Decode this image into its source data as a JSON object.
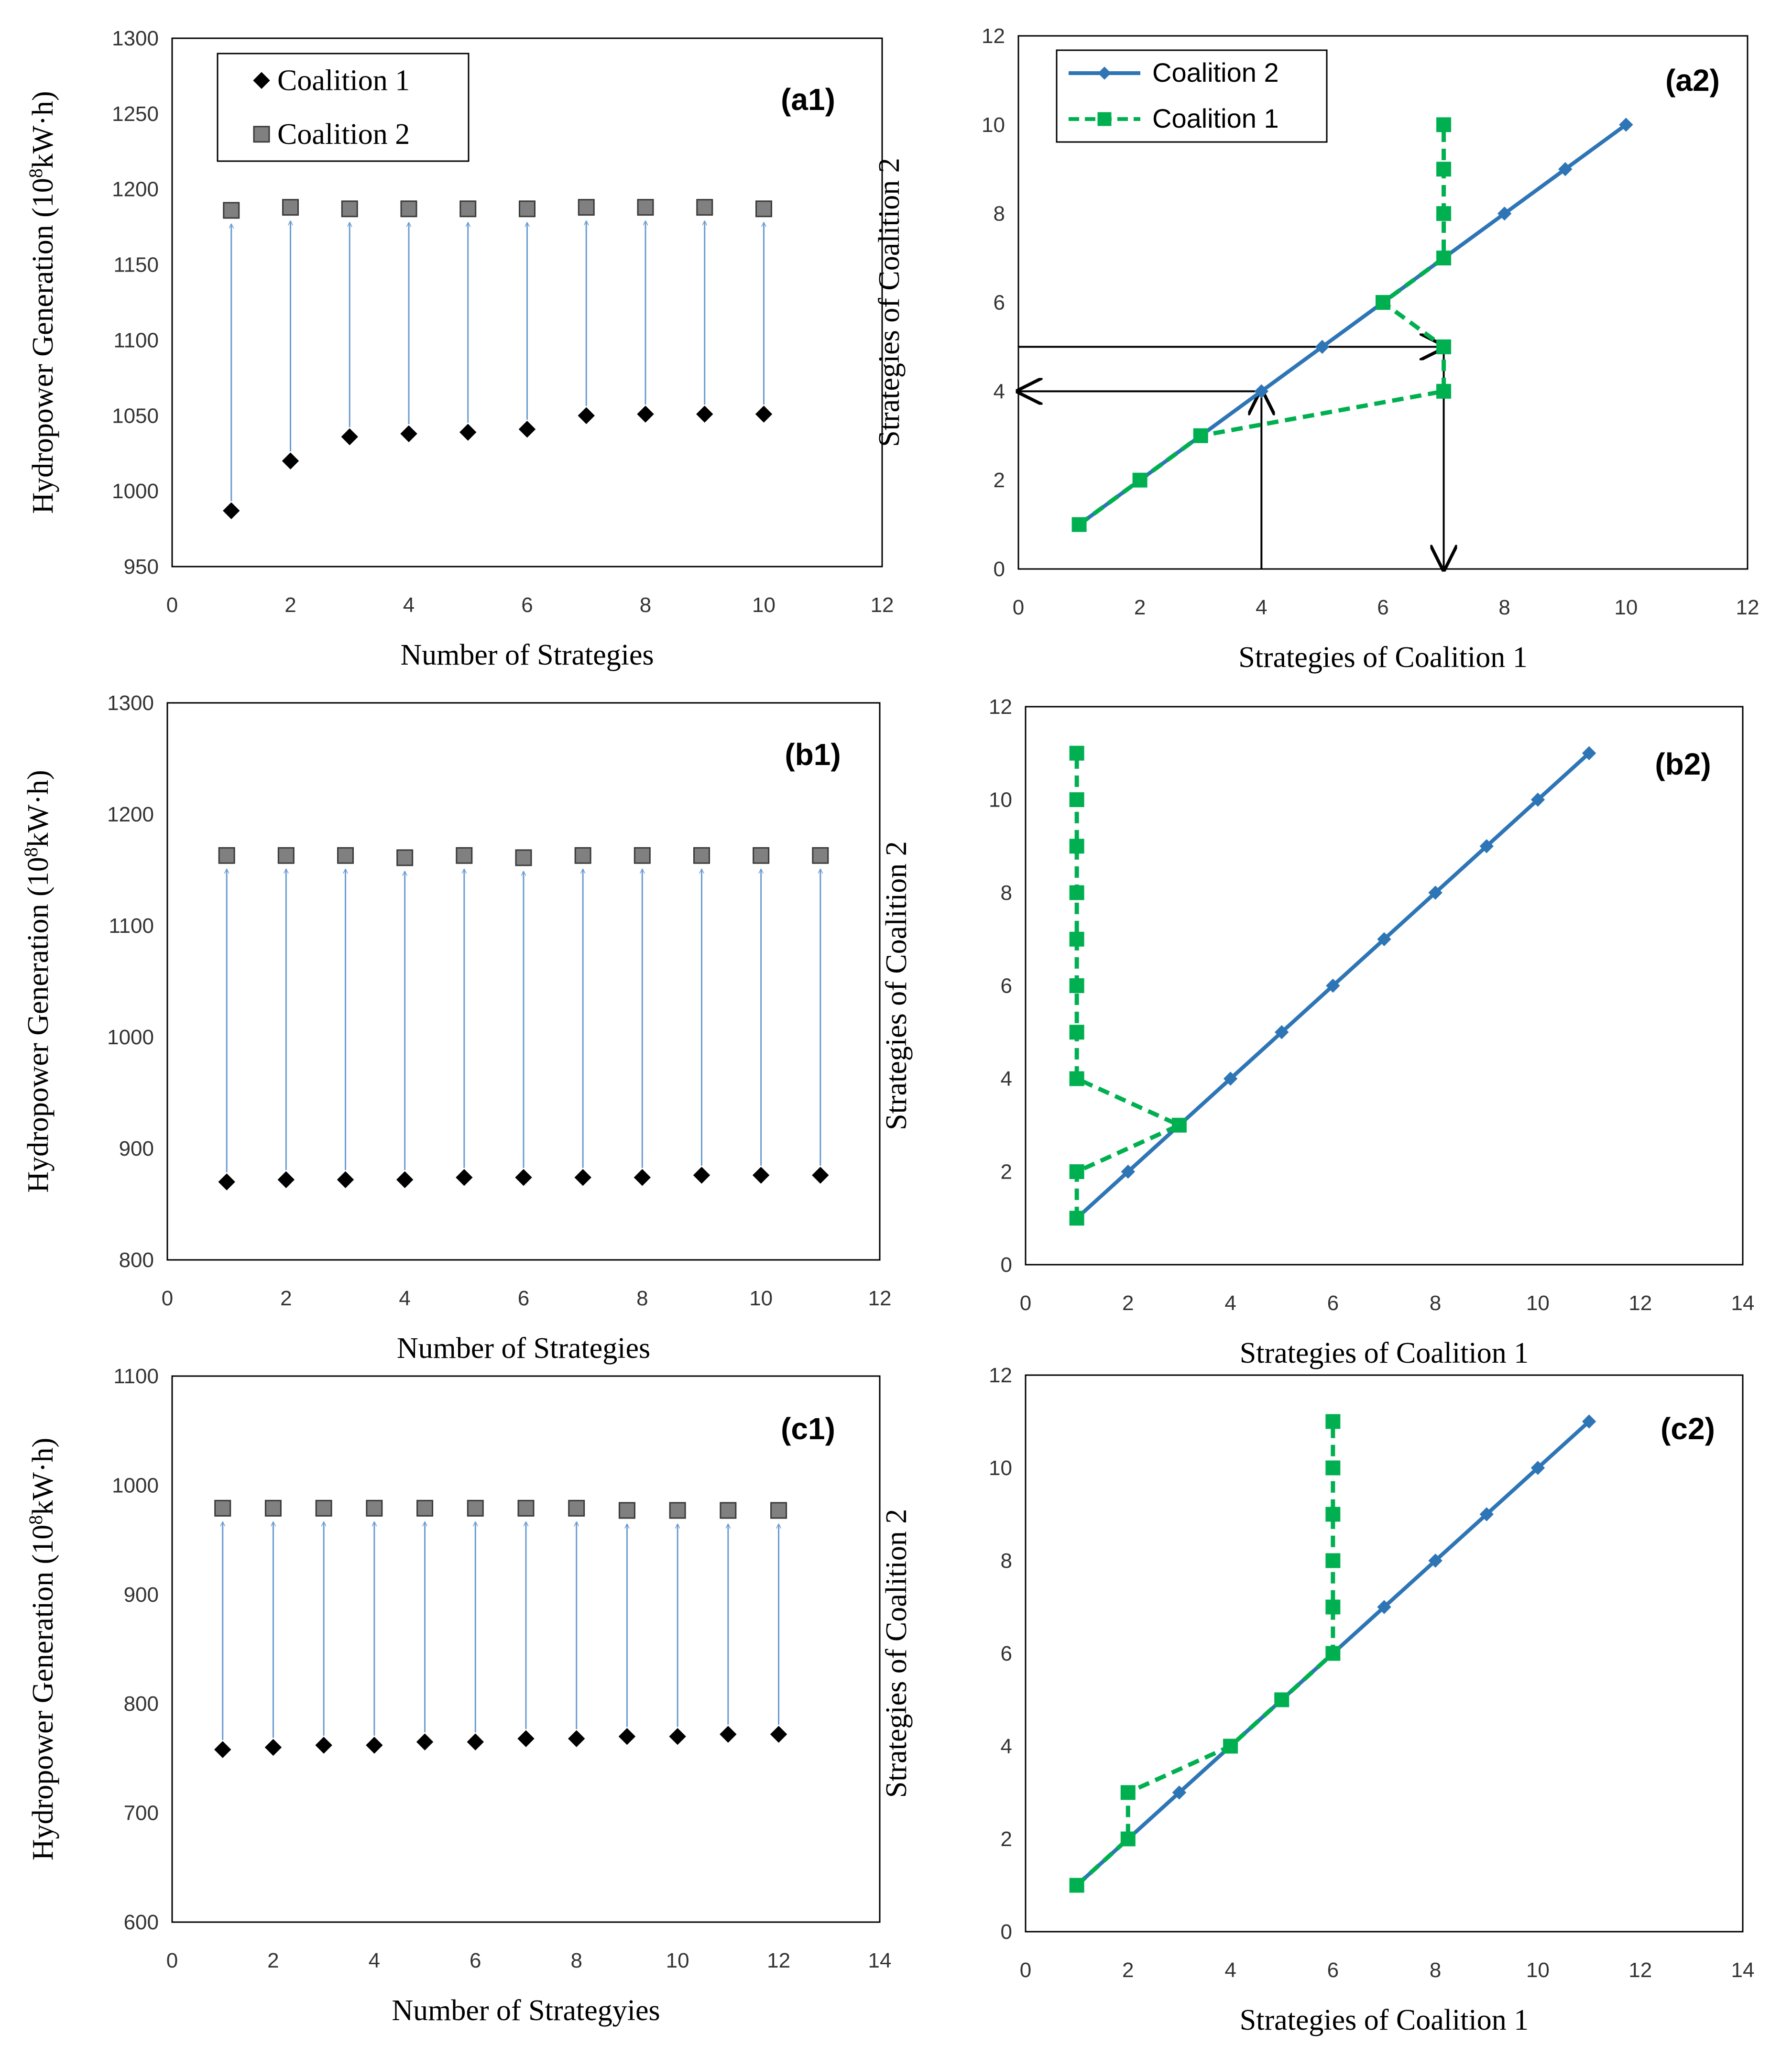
{
  "chart_data": [
    {
      "id": "a1",
      "type": "scatter",
      "panel_label": "(a1)",
      "title": "",
      "xlabel": "Number of Strategies",
      "ylabel": "Hydropower Generation (10",
      "ylabel_sup": "8",
      "ylabel_tail": "kW·h)",
      "xlim": [
        0,
        12
      ],
      "xstep": 2,
      "ylim": [
        950,
        1300
      ],
      "ystep": 50,
      "legend": {
        "placement": "top-left",
        "entries": [
          "Coalition 1",
          "Coalition 2"
        ]
      },
      "x": [
        1,
        2,
        3,
        4,
        5,
        6,
        7,
        8,
        9,
        10
      ],
      "series": [
        {
          "name": "Coalition 1",
          "marker": "diamond",
          "color": "#000000",
          "values": [
            987,
            1020,
            1036,
            1038,
            1039,
            1041,
            1050,
            1051,
            1051,
            1051
          ]
        },
        {
          "name": "Coalition 2",
          "marker": "square",
          "color": "#808080",
          "values": [
            1186,
            1188,
            1187,
            1187,
            1187,
            1187,
            1188,
            1188,
            1188,
            1187
          ]
        }
      ],
      "arrows": {
        "color": "#6a9bd1",
        "from": "Coalition 1",
        "to": "Coalition 2"
      }
    },
    {
      "id": "a2",
      "type": "line",
      "panel_label": "(a2)",
      "title": "",
      "xlabel": "Strategies of Coalition 1",
      "ylabel": "Strategies of Coalition 2",
      "xlim": [
        0,
        12
      ],
      "xstep": 2,
      "ylim": [
        0,
        12
      ],
      "ystep": 2,
      "legend": {
        "placement": "top-left",
        "entries": [
          "Coalition 2",
          "Coalition 1"
        ]
      },
      "series": [
        {
          "name": "Coalition 2",
          "color": "#2e75b6",
          "style": "solid",
          "marker": "diamond",
          "x": [
            1,
            2,
            3,
            4,
            5,
            6,
            7,
            8,
            9,
            10
          ],
          "y": [
            1,
            2,
            3,
            4,
            5,
            6,
            7,
            8,
            9,
            10
          ]
        },
        {
          "name": "Coalition 1",
          "color": "#00b050",
          "style": "dashed",
          "marker": "square",
          "x": [
            1,
            2,
            3,
            7,
            7,
            6,
            7,
            7,
            7,
            7
          ],
          "y": [
            1,
            2,
            3,
            4,
            5,
            6,
            7,
            8,
            9,
            10
          ]
        }
      ],
      "annotation_arrows": [
        {
          "from": [
            4,
            0
          ],
          "to": [
            4,
            4
          ]
        },
        {
          "from": [
            4,
            4
          ],
          "to": [
            0,
            4
          ]
        },
        {
          "from": [
            0,
            5
          ],
          "to": [
            7,
            5
          ]
        },
        {
          "from": [
            7,
            5
          ],
          "to": [
            7,
            0
          ]
        }
      ]
    },
    {
      "id": "b1",
      "type": "scatter",
      "panel_label": "(b1)",
      "title": "",
      "xlabel": "Number of Strategies",
      "ylabel": "Hydropower Generation (10",
      "ylabel_sup": "8",
      "ylabel_tail": "kW·h)",
      "xlim": [
        0,
        12
      ],
      "xstep": 2,
      "ylim": [
        800,
        1300
      ],
      "ystep": 100,
      "x": [
        1,
        2,
        3,
        4,
        5,
        6,
        7,
        8,
        9,
        10,
        11
      ],
      "series": [
        {
          "name": "Coalition 1",
          "marker": "diamond",
          "color": "#000000",
          "values": [
            870,
            872,
            872,
            872,
            874,
            874,
            874,
            874,
            876,
            876,
            876
          ]
        },
        {
          "name": "Coalition 2",
          "marker": "square",
          "color": "#808080",
          "values": [
            1163,
            1163,
            1163,
            1161,
            1163,
            1161,
            1163,
            1163,
            1163,
            1163,
            1163
          ]
        }
      ],
      "arrows": {
        "color": "#6a9bd1",
        "from": "Coalition 1",
        "to": "Coalition 2"
      }
    },
    {
      "id": "b2",
      "type": "line",
      "panel_label": "(b2)",
      "title": "",
      "xlabel": "Strategies of Coalition 1",
      "ylabel": "Strategies of Coalition 2",
      "xlim": [
        0,
        14
      ],
      "xstep": 2,
      "ylim": [
        0,
        12
      ],
      "ystep": 2,
      "series": [
        {
          "name": "Coalition 2",
          "color": "#2e75b6",
          "style": "solid",
          "marker": "diamond",
          "x": [
            1,
            2,
            3,
            4,
            5,
            6,
            7,
            8,
            9,
            10,
            11
          ],
          "y": [
            1,
            2,
            3,
            4,
            5,
            6,
            7,
            8,
            9,
            10,
            11
          ]
        },
        {
          "name": "Coalition 1",
          "color": "#00b050",
          "style": "dashed",
          "marker": "square",
          "x": [
            1,
            1,
            3,
            1,
            1,
            1,
            1,
            1,
            1,
            1,
            1
          ],
          "y": [
            1,
            2,
            3,
            4,
            5,
            6,
            7,
            8,
            9,
            10,
            11
          ]
        }
      ]
    },
    {
      "id": "c1",
      "type": "scatter",
      "panel_label": "(c1)",
      "title": "",
      "xlabel": "Number of Strategyies",
      "ylabel": "Hydropower Generation (10",
      "ylabel_sup": "8",
      "ylabel_tail": "kW·h)",
      "xlim": [
        0,
        14
      ],
      "xstep": 2,
      "ylim": [
        600,
        1100
      ],
      "ystep": 100,
      "x": [
        1,
        2,
        3,
        4,
        5,
        6,
        7,
        8,
        9,
        10,
        11,
        12
      ],
      "series": [
        {
          "name": "Coalition 1",
          "marker": "diamond",
          "color": "#000000",
          "values": [
            758,
            760,
            762,
            762,
            765,
            765,
            768,
            768,
            770,
            770,
            772,
            772
          ]
        },
        {
          "name": "Coalition 2",
          "marker": "square",
          "color": "#808080",
          "values": [
            979,
            979,
            979,
            979,
            979,
            979,
            979,
            979,
            977,
            977,
            977,
            977
          ]
        }
      ],
      "arrows": {
        "color": "#6a9bd1",
        "from": "Coalition 1",
        "to": "Coalition 2"
      }
    },
    {
      "id": "c2",
      "type": "line",
      "panel_label": "(c2)",
      "title": "",
      "xlabel": "Strategies of Coalition 1",
      "ylabel": "Strategies of Coalition 2",
      "xlim": [
        0,
        14
      ],
      "xstep": 2,
      "ylim": [
        0,
        12
      ],
      "ystep": 2,
      "series": [
        {
          "name": "Coalition 2",
          "color": "#2e75b6",
          "style": "solid",
          "marker": "diamond",
          "x": [
            1,
            2,
            3,
            4,
            5,
            6,
            7,
            8,
            9,
            10,
            11
          ],
          "y": [
            1,
            2,
            3,
            4,
            5,
            6,
            7,
            8,
            9,
            10,
            11
          ]
        },
        {
          "name": "Coalition 1",
          "color": "#00b050",
          "style": "dashed",
          "marker": "square",
          "x": [
            1,
            2,
            2,
            4,
            5,
            6,
            6,
            6,
            6,
            6,
            6
          ],
          "y": [
            1,
            2,
            3,
            4,
            5,
            6,
            7,
            8,
            9,
            10,
            11
          ]
        }
      ]
    }
  ]
}
